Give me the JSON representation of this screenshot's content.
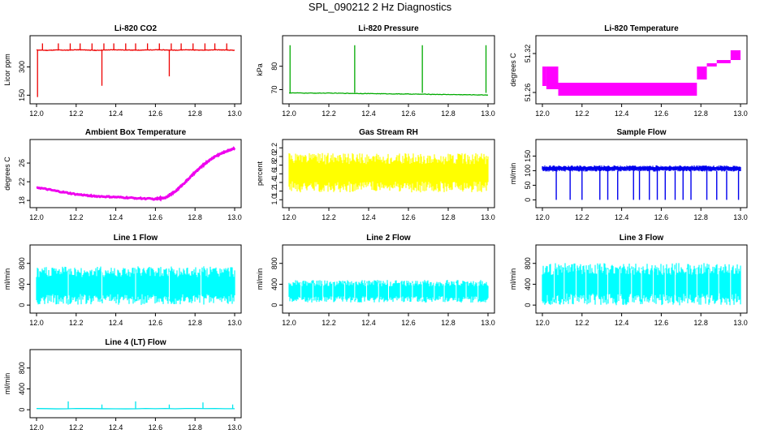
{
  "title": "SPL_090212  2 Hz Diagnostics",
  "chart_data": [
    {
      "type": "line",
      "title": "Li-820 CO2",
      "xlabel": "",
      "ylabel": "Licor ppm",
      "xlim": [
        12.0,
        13.0
      ],
      "ylim": [
        130,
        440
      ],
      "xticks": [
        "12.0",
        "12.2",
        "12.4",
        "12.6",
        "12.8",
        "13.0"
      ],
      "yticks": [
        "150",
        "300"
      ],
      "yticks_v": [
        150,
        300
      ],
      "color": "#ee0000",
      "series": [
        {
          "x": [
            12.0,
            12.05,
            12.1,
            12.15,
            12.2,
            12.25,
            12.3,
            12.35,
            12.4,
            12.45,
            12.5,
            12.55,
            12.6,
            12.65,
            12.7,
            12.75,
            12.8,
            12.85,
            12.9,
            12.95,
            13.0
          ],
          "values": [
            390,
            388,
            390,
            389,
            391,
            390,
            388,
            390,
            391,
            390,
            389,
            390,
            391,
            390,
            389,
            391,
            390,
            389,
            391,
            390,
            388
          ]
        }
      ],
      "spikes_up": [
        12.03,
        12.11,
        12.17,
        12.22,
        12.28,
        12.34,
        12.39,
        12.45,
        12.5,
        12.56,
        12.62,
        12.68,
        12.73,
        12.79,
        12.85,
        12.9,
        12.96
      ],
      "spikes_down": [
        12.005,
        12.33,
        12.67
      ]
    },
    {
      "type": "line",
      "title": "Li-820 Pressure",
      "xlabel": "",
      "ylabel": "kPa",
      "xlim": [
        12.0,
        13.0
      ],
      "ylim": [
        66,
        91
      ],
      "xticks": [
        "12.0",
        "12.2",
        "12.4",
        "12.6",
        "12.8",
        "13.0"
      ],
      "yticks": [
        "70",
        "80"
      ],
      "yticks_v": [
        70,
        80
      ],
      "color": "#00aa00",
      "series": [
        {
          "x": [
            12.0,
            12.1,
            12.2,
            12.3,
            12.4,
            12.5,
            12.6,
            12.7,
            12.8,
            12.9,
            13.0
          ],
          "values": [
            68.6,
            68.5,
            68.5,
            68.4,
            68.3,
            68.2,
            68.1,
            68.0,
            67.9,
            67.8,
            67.7
          ]
        }
      ],
      "spikes_up": [
        12.005,
        12.33,
        12.67,
        12.99
      ]
    },
    {
      "type": "line",
      "title": "Li-820 Temperature",
      "xlabel": "",
      "ylabel": "degrees C",
      "xlim": [
        12.0,
        13.0
      ],
      "ylim": [
        51.25,
        51.34
      ],
      "xticks": [
        "12.0",
        "12.2",
        "12.4",
        "12.6",
        "12.8",
        "13.0"
      ],
      "yticks": [
        "51.26",
        "51.32"
      ],
      "yticks_v": [
        51.26,
        51.32
      ],
      "color": "#ff00ff",
      "bands": [
        [
          12.0,
          12.02,
          51.27,
          51.3
        ],
        [
          12.02,
          12.08,
          51.265,
          51.3
        ],
        [
          12.08,
          12.78,
          51.255,
          51.275
        ],
        [
          12.78,
          12.83,
          51.28,
          51.3
        ],
        [
          12.83,
          12.88,
          51.3,
          51.305
        ],
        [
          12.88,
          12.95,
          51.305,
          51.31
        ],
        [
          12.95,
          13.0,
          51.31,
          51.325
        ]
      ]
    },
    {
      "type": "line",
      "title": "Ambient Box Temperature",
      "xlabel": "",
      "ylabel": "degrees C",
      "xlim": [
        12.0,
        13.0
      ],
      "ylim": [
        17.5,
        30
      ],
      "xticks": [
        "12.0",
        "12.2",
        "12.4",
        "12.6",
        "12.8",
        "13.0"
      ],
      "yticks": [
        "18",
        "22",
        "26"
      ],
      "yticks_v": [
        18,
        22,
        26
      ],
      "color": "#ee00ee",
      "series": [
        {
          "x": [
            12.0,
            12.1,
            12.2,
            12.3,
            12.4,
            12.5,
            12.6,
            12.65,
            12.7,
            12.75,
            12.8,
            12.85,
            12.9,
            12.95,
            13.0
          ],
          "values": [
            20.8,
            20.0,
            19.3,
            18.9,
            18.7,
            18.5,
            18.3,
            18.6,
            19.9,
            21.9,
            24.0,
            25.9,
            27.4,
            28.4,
            29.2
          ]
        }
      ]
    },
    {
      "type": "area",
      "title": "Gas Stream RH",
      "xlabel": "",
      "ylabel": "percent",
      "xlim": [
        12.0,
        13.0
      ],
      "ylim": [
        0.93,
        2.28
      ],
      "xticks": [
        "12.0",
        "12.2",
        "12.4",
        "12.6",
        "12.8",
        "13.0"
      ],
      "yticks": [
        "1.0",
        "1.2",
        "1.4",
        "1.6",
        "1.8",
        "2.0",
        "2.2"
      ],
      "yticks_v": [
        1.0,
        1.2,
        1.4,
        1.6,
        1.8,
        2.0,
        2.2
      ],
      "color": "#ffff00",
      "series": [
        {
          "name": "",
          "lower": 1.3,
          "upper": 1.95
        }
      ]
    },
    {
      "type": "line",
      "title": "Sample Flow",
      "xlabel": "",
      "ylabel": "ml/min",
      "xlim": [
        12.0,
        13.0
      ],
      "ylim": [
        -10,
        190
      ],
      "xticks": [
        "12.0",
        "12.2",
        "12.4",
        "12.6",
        "12.8",
        "13.0"
      ],
      "yticks": [
        "0",
        "50",
        "100",
        "150"
      ],
      "yticks_v": [
        0,
        50,
        100,
        150
      ],
      "color": "#0000ee",
      "series": [
        {
          "name": "",
          "lower": 100,
          "upper": 115
        }
      ],
      "dips": [
        12.07,
        12.14,
        12.2,
        12.29,
        12.33,
        12.38,
        12.46,
        12.49,
        12.54,
        12.58,
        12.62,
        12.67,
        12.71,
        12.75,
        12.83,
        12.88,
        12.93,
        12.99
      ]
    },
    {
      "type": "area",
      "title": "Line 1 Flow",
      "xlabel": "",
      "ylabel": "ml/min",
      "xlim": [
        12.0,
        13.0
      ],
      "ylim": [
        -60,
        1060
      ],
      "xticks": [
        "12.0",
        "12.2",
        "12.4",
        "12.6",
        "12.8",
        "13.0"
      ],
      "yticks": [
        "0",
        "400",
        "800"
      ],
      "yticks_v": [
        0,
        400,
        800
      ],
      "color": "#00ffff",
      "series": [
        {
          "name": "",
          "lower": 110,
          "upper": 640
        }
      ],
      "gaps": [
        12.16,
        12.33,
        12.5,
        12.67,
        12.83
      ]
    },
    {
      "type": "area",
      "title": "Line 2 Flow",
      "xlabel": "",
      "ylabel": "ml/min",
      "xlim": [
        12.0,
        13.0
      ],
      "ylim": [
        -60,
        1060
      ],
      "xticks": [
        "12.0",
        "12.2",
        "12.4",
        "12.6",
        "12.8",
        "13.0"
      ],
      "yticks": [
        "0",
        "400",
        "800"
      ],
      "yticks_v": [
        0,
        400,
        800
      ],
      "color": "#00ffff",
      "series": [
        {
          "name": "",
          "lower": 110,
          "upper": 420
        }
      ],
      "gaps": [
        12.06,
        12.12,
        12.17,
        12.22,
        12.28,
        12.33,
        12.39,
        12.45,
        12.5,
        12.56,
        12.62,
        12.67,
        12.73,
        12.78,
        12.84,
        12.89,
        12.95
      ]
    },
    {
      "type": "area",
      "title": "Line 3 Flow",
      "xlabel": "",
      "ylabel": "ml/min",
      "xlim": [
        12.0,
        13.0
      ],
      "ylim": [
        -60,
        1060
      ],
      "xticks": [
        "12.0",
        "12.2",
        "12.4",
        "12.6",
        "12.8",
        "13.0"
      ],
      "yticks": [
        "0",
        "400",
        "800"
      ],
      "yticks_v": [
        0,
        400,
        800
      ],
      "color": "#00ffff",
      "series": [
        {
          "name": "",
          "lower": 110,
          "upper": 690
        }
      ],
      "gaps": [
        12.06,
        12.11,
        12.17,
        12.22,
        12.28,
        12.33,
        12.39,
        12.45,
        12.5,
        12.56,
        12.62,
        12.67,
        12.73,
        12.78,
        12.84,
        12.89,
        12.95
      ]
    },
    {
      "type": "line",
      "title": "Line 4 (LT) Flow",
      "xlabel": "",
      "ylabel": "ml/min",
      "xlim": [
        12.0,
        13.0
      ],
      "ylim": [
        -60,
        1060
      ],
      "xticks": [
        "12.0",
        "12.2",
        "12.4",
        "12.6",
        "12.8",
        "13.0"
      ],
      "yticks": [
        "0",
        "400",
        "800"
      ],
      "yticks_v": [
        0,
        400,
        800
      ],
      "color": "#00e5ee",
      "series": [
        {
          "x": [
            12.0,
            13.0
          ],
          "values": [
            20,
            20
          ]
        }
      ],
      "spikes_up": [
        12.16,
        12.33,
        12.5,
        12.67,
        12.84,
        12.99
      ],
      "spike_values": [
        160,
        100,
        160,
        100,
        140,
        100
      ]
    }
  ]
}
